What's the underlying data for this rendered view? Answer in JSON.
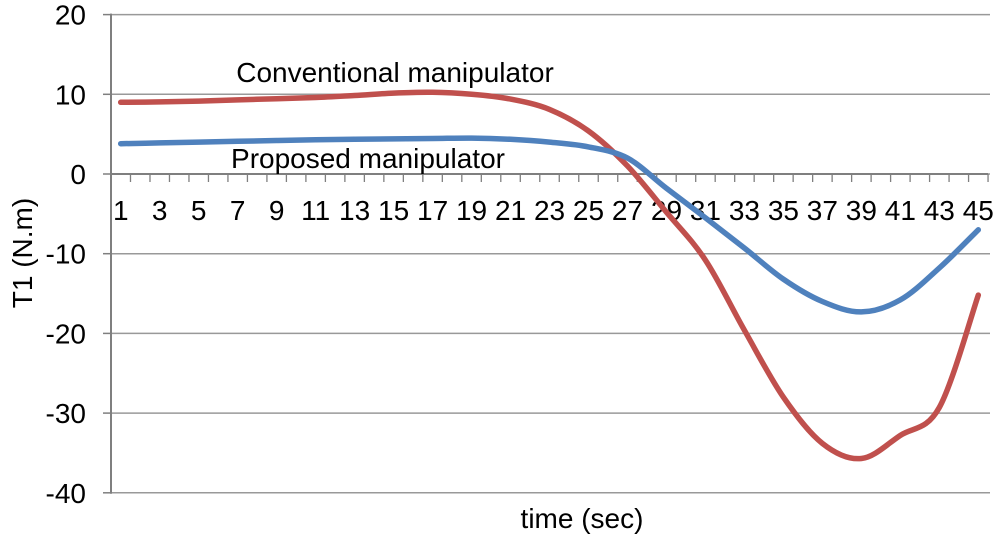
{
  "page": {
    "background": "#ffffff"
  },
  "chart_data": {
    "type": "line",
    "title": "",
    "xlabel": "time (sec)",
    "ylabel": "T1 (N.m)",
    "x": [
      1,
      3,
      5,
      7,
      9,
      11,
      13,
      15,
      17,
      19,
      21,
      23,
      25,
      27,
      29,
      31,
      33,
      35,
      37,
      39,
      41,
      43,
      45
    ],
    "x_tick_labels": [
      "1",
      "3",
      "5",
      "7",
      "9",
      "11",
      "13",
      "15",
      "17",
      "19",
      "21",
      "23",
      "25",
      "27",
      "29",
      "31",
      "33",
      "35",
      "37",
      "39",
      "41",
      "43",
      "45"
    ],
    "y_ticks": [
      20,
      10,
      0,
      -10,
      -20,
      -30,
      -40
    ],
    "y_tick_labels": [
      "20",
      "10",
      "0",
      "-10",
      "-20",
      "-30",
      "-40"
    ],
    "xlim": [
      1,
      45
    ],
    "ylim": [
      -40,
      20
    ],
    "grid": "horizontal",
    "legend_position": "inline-text-labels",
    "series": [
      {
        "id": "conventional",
        "name": "Conventional manipulator",
        "color": "#C0504D",
        "values": [
          9.0,
          9.05,
          9.15,
          9.3,
          9.45,
          9.6,
          9.85,
          10.15,
          10.25,
          10.0,
          9.4,
          8.1,
          5.4,
          1.0,
          -4.8,
          -10.8,
          -19.6,
          -28.0,
          -33.8,
          -35.7,
          -32.8,
          -29.3,
          -15.2
        ]
      },
      {
        "id": "proposed",
        "name": "Proposed manipulator",
        "color": "#4F81BD",
        "values": [
          3.8,
          3.9,
          4.0,
          4.1,
          4.2,
          4.3,
          4.35,
          4.4,
          4.45,
          4.5,
          4.35,
          4.0,
          3.4,
          2.0,
          -1.8,
          -5.5,
          -9.3,
          -13.2,
          -16.0,
          -17.3,
          -15.8,
          -11.8,
          -7.0
        ]
      }
    ],
    "colors": {
      "gridline": "#999999",
      "axis": "#7F7F7F",
      "tick": "#7F7F7F",
      "text": "#000000"
    }
  }
}
